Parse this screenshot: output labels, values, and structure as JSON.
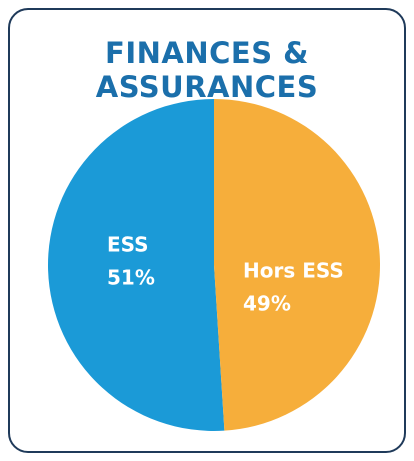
{
  "chart_data": {
    "type": "pie",
    "title": "FINANCES & ASSURANCES",
    "categories": [
      "ESS",
      "Hors ESS"
    ],
    "values": [
      51,
      49
    ],
    "value_labels": [
      "51%",
      "49%"
    ],
    "colors": [
      "#1b9ad7",
      "#f6ae3b"
    ]
  }
}
